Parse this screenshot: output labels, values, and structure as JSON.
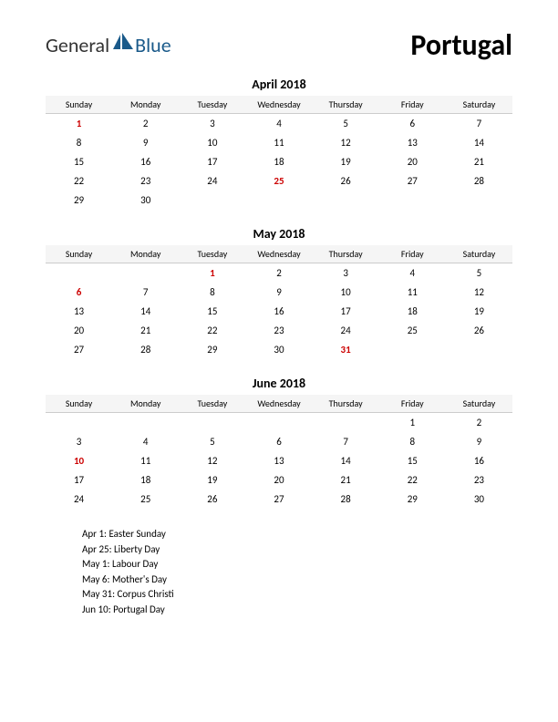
{
  "logo": {
    "text_general": "General",
    "text_blue": "Blue",
    "shape_color": "#1a5a8a"
  },
  "country": "Portugal",
  "day_headers": [
    "Sunday",
    "Monday",
    "Tuesday",
    "Wednesday",
    "Thursday",
    "Friday",
    "Saturday"
  ],
  "months": [
    {
      "title": "April 2018",
      "weeks": [
        [
          {
            "d": "1",
            "h": true
          },
          {
            "d": "2"
          },
          {
            "d": "3"
          },
          {
            "d": "4"
          },
          {
            "d": "5"
          },
          {
            "d": "6"
          },
          {
            "d": "7"
          }
        ],
        [
          {
            "d": "8"
          },
          {
            "d": "9"
          },
          {
            "d": "10"
          },
          {
            "d": "11"
          },
          {
            "d": "12"
          },
          {
            "d": "13"
          },
          {
            "d": "14"
          }
        ],
        [
          {
            "d": "15"
          },
          {
            "d": "16"
          },
          {
            "d": "17"
          },
          {
            "d": "18"
          },
          {
            "d": "19"
          },
          {
            "d": "20"
          },
          {
            "d": "21"
          }
        ],
        [
          {
            "d": "22"
          },
          {
            "d": "23"
          },
          {
            "d": "24"
          },
          {
            "d": "25",
            "h": true
          },
          {
            "d": "26"
          },
          {
            "d": "27"
          },
          {
            "d": "28"
          }
        ],
        [
          {
            "d": "29"
          },
          {
            "d": "30"
          },
          {
            "d": ""
          },
          {
            "d": ""
          },
          {
            "d": ""
          },
          {
            "d": ""
          },
          {
            "d": ""
          }
        ]
      ]
    },
    {
      "title": "May 2018",
      "weeks": [
        [
          {
            "d": ""
          },
          {
            "d": ""
          },
          {
            "d": "1",
            "h": true
          },
          {
            "d": "2"
          },
          {
            "d": "3"
          },
          {
            "d": "4"
          },
          {
            "d": "5"
          }
        ],
        [
          {
            "d": "6",
            "h": true
          },
          {
            "d": "7"
          },
          {
            "d": "8"
          },
          {
            "d": "9"
          },
          {
            "d": "10"
          },
          {
            "d": "11"
          },
          {
            "d": "12"
          }
        ],
        [
          {
            "d": "13"
          },
          {
            "d": "14"
          },
          {
            "d": "15"
          },
          {
            "d": "16"
          },
          {
            "d": "17"
          },
          {
            "d": "18"
          },
          {
            "d": "19"
          }
        ],
        [
          {
            "d": "20"
          },
          {
            "d": "21"
          },
          {
            "d": "22"
          },
          {
            "d": "23"
          },
          {
            "d": "24"
          },
          {
            "d": "25"
          },
          {
            "d": "26"
          }
        ],
        [
          {
            "d": "27"
          },
          {
            "d": "28"
          },
          {
            "d": "29"
          },
          {
            "d": "30"
          },
          {
            "d": "31",
            "h": true
          },
          {
            "d": ""
          },
          {
            "d": ""
          }
        ]
      ]
    },
    {
      "title": "June 2018",
      "weeks": [
        [
          {
            "d": ""
          },
          {
            "d": ""
          },
          {
            "d": ""
          },
          {
            "d": ""
          },
          {
            "d": ""
          },
          {
            "d": "1"
          },
          {
            "d": "2"
          }
        ],
        [
          {
            "d": "3"
          },
          {
            "d": "4"
          },
          {
            "d": "5"
          },
          {
            "d": "6"
          },
          {
            "d": "7"
          },
          {
            "d": "8"
          },
          {
            "d": "9"
          }
        ],
        [
          {
            "d": "10",
            "h": true
          },
          {
            "d": "11"
          },
          {
            "d": "12"
          },
          {
            "d": "13"
          },
          {
            "d": "14"
          },
          {
            "d": "15"
          },
          {
            "d": "16"
          }
        ],
        [
          {
            "d": "17"
          },
          {
            "d": "18"
          },
          {
            "d": "19"
          },
          {
            "d": "20"
          },
          {
            "d": "21"
          },
          {
            "d": "22"
          },
          {
            "d": "23"
          }
        ],
        [
          {
            "d": "24"
          },
          {
            "d": "25"
          },
          {
            "d": "26"
          },
          {
            "d": "27"
          },
          {
            "d": "28"
          },
          {
            "d": "29"
          },
          {
            "d": "30"
          }
        ]
      ]
    }
  ],
  "holidays": [
    "Apr 1: Easter Sunday",
    "Apr 25: Liberty Day",
    "May 1: Labour Day",
    "May 6: Mother's Day",
    "May 31: Corpus Christi",
    "Jun 10: Portugal Day"
  ],
  "colors": {
    "holiday_text": "#cc0000",
    "header_bg": "#f5f5f5",
    "border": "#cccccc",
    "background": "#ffffff",
    "text": "#000000"
  }
}
